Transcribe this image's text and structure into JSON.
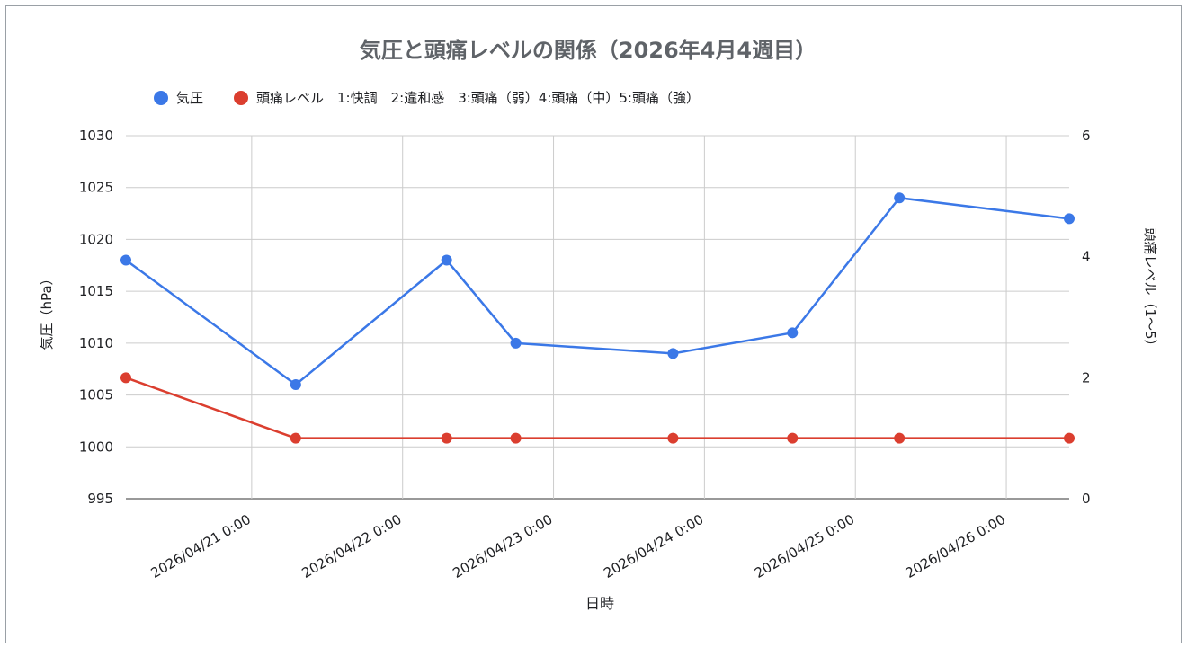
{
  "chart_data": {
    "type": "line",
    "title": "気圧と頭痛レベルの関係（2026年4月4週目）",
    "xlabel": "日時",
    "ylabel": "気圧（hPa）",
    "y2label": "頭痛レベル（1〜5）",
    "x_ticks": [
      "2026/04/21 0:00",
      "2026/04/22 0:00",
      "2026/04/23 0:00",
      "2026/04/24 0:00",
      "2026/04/25 0:00",
      "2026/04/26 0:00"
    ],
    "x_domain": [
      "2026-04-20T04:00",
      "2026-04-26T10:00"
    ],
    "y_ticks": [
      995,
      1000,
      1005,
      1010,
      1015,
      1020,
      1025,
      1030
    ],
    "ylim": [
      995,
      1030
    ],
    "y2_ticks": [
      0,
      2,
      4,
      6
    ],
    "y2lim": [
      0,
      6
    ],
    "grid": true,
    "legend_position": "top",
    "series": [
      {
        "name": "気圧",
        "axis": "left",
        "color": "#3b78e7",
        "x": [
          "2026-04-20T04:00",
          "2026-04-21T07:00",
          "2026-04-22T07:00",
          "2026-04-22T18:00",
          "2026-04-23T19:00",
          "2026-04-24T14:00",
          "2026-04-25T07:00",
          "2026-04-26T10:00"
        ],
        "values": [
          1018,
          1006,
          1018,
          1010,
          1009,
          1011,
          1024,
          1022
        ]
      },
      {
        "name": "頭痛レベル　1:快調　2:違和感　3:頭痛（弱）4:頭痛（中）5:頭痛（強）",
        "axis": "right",
        "color": "#db3e2f",
        "x": [
          "2026-04-20T04:00",
          "2026-04-21T07:00",
          "2026-04-22T07:00",
          "2026-04-22T18:00",
          "2026-04-23T19:00",
          "2026-04-24T14:00",
          "2026-04-25T07:00",
          "2026-04-26T10:00"
        ],
        "values": [
          2,
          1,
          1,
          1,
          1,
          1,
          1,
          1
        ]
      }
    ]
  }
}
